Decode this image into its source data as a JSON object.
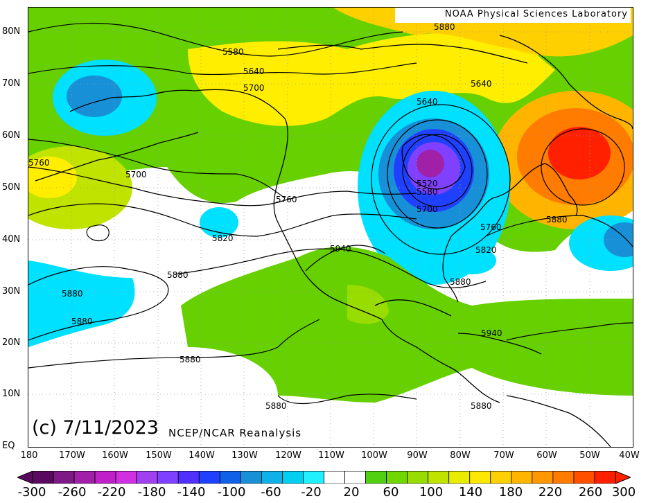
{
  "map": {
    "credit": "NOAA Physical Sciences Laboratory",
    "date": "(c) 7/11/2023",
    "source": "NCEP/NCAR Reanalysis",
    "lat_labels": [
      "80N",
      "70N",
      "60N",
      "50N",
      "40N",
      "30N",
      "20N",
      "10N",
      "EQ"
    ],
    "lon_labels": [
      "180",
      "170W",
      "160W",
      "150W",
      "140W",
      "130W",
      "120W",
      "110W",
      "100W",
      "90W",
      "80W",
      "70W",
      "60W",
      "50W",
      "40W"
    ],
    "contour_labels": [
      "5580",
      "5640",
      "5700",
      "5760",
      "5700",
      "5760",
      "5820",
      "5880",
      "5880",
      "5880",
      "5880",
      "5880",
      "5940",
      "5520",
      "5580",
      "5700",
      "5640",
      "5640",
      "5760",
      "5820",
      "5880",
      "5880",
      "5940",
      "5880",
      "5880"
    ],
    "colors": {
      "purple_deep": "#6a0a6e",
      "violet": "#9b30d0",
      "blue": "#2040ff",
      "cyan": "#00e0ff",
      "green": "#66d000",
      "yellow": "#ffee00",
      "orange": "#ff9b00",
      "red": "#ff1010",
      "land_outline": "#000000"
    }
  },
  "colorbar": {
    "labels": [
      "-300",
      "-260",
      "-220",
      "-180",
      "-140",
      "-100",
      "-60",
      "-20",
      "20",
      "60",
      "100",
      "140",
      "180",
      "220",
      "260",
      "300"
    ],
    "colors": [
      "#5a0a5e",
      "#7e1a86",
      "#a020a8",
      "#c020c8",
      "#d030e0",
      "#a040f0",
      "#8040ff",
      "#5030ff",
      "#2040ff",
      "#1060e8",
      "#1890d8",
      "#10b0e8",
      "#00d0f0",
      "#20f0ff",
      "#ffffff",
      "#ffffff",
      "#50d010",
      "#70d800",
      "#98dc00",
      "#c0e400",
      "#e8ec00",
      "#ffe800",
      "#ffd000",
      "#ffb400",
      "#ff9800",
      "#ff7c00",
      "#ff5000",
      "#ff2000"
    ]
  }
}
